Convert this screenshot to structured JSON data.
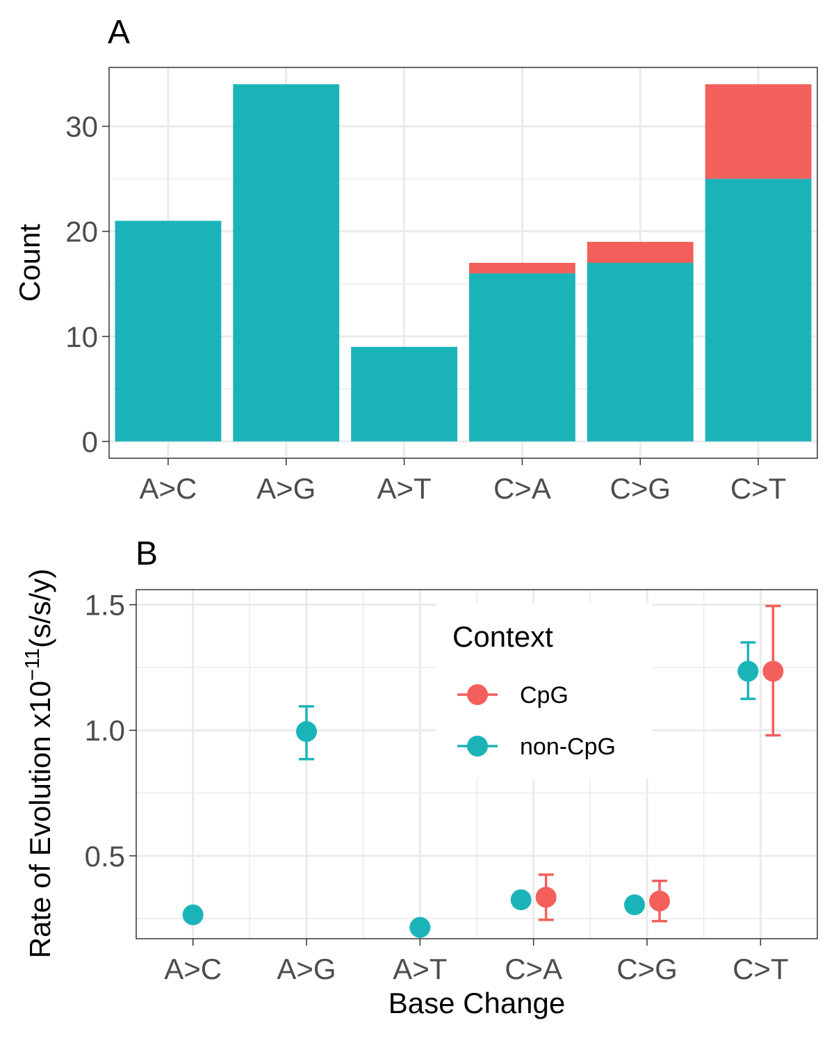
{
  "chart_data": [
    {
      "type": "bar",
      "stacked": true,
      "panel_tag": "A",
      "title": "",
      "xlabel": "",
      "ylabel": "Count",
      "ylim": [
        -1.6,
        35.6
      ],
      "yticks": [
        0,
        10,
        20,
        30
      ],
      "categories": [
        "A>C",
        "A>G",
        "A>T",
        "C>A",
        "C>G",
        "C>T"
      ],
      "series": [
        {
          "key": "non-CpG",
          "color": "#1ab4b8",
          "values": [
            21,
            34,
            9,
            16,
            17,
            25
          ]
        },
        {
          "key": "CpG",
          "color": "#f35f5b",
          "values": [
            0,
            0,
            0,
            1,
            2,
            9
          ]
        }
      ],
      "grid": true
    },
    {
      "type": "scatter",
      "panel_tag": "B",
      "title": "",
      "xlabel": "Base Change",
      "ylabel": {
        "prefix": "Rate of Evolution x10",
        "exponent": "−11",
        "suffix": "(s/s/y)"
      },
      "ylim": [
        0.17,
        1.56
      ],
      "yticks": [
        0.5,
        1.0,
        1.5
      ],
      "ytick_labels": [
        "0.5",
        "1.0",
        "1.5"
      ],
      "categories": [
        "A>C",
        "A>G",
        "A>T",
        "C>A",
        "C>G",
        "C>T"
      ],
      "error_bars": true,
      "series": [
        {
          "name": "CpG",
          "color": "#f35f5b",
          "points": [
            {
              "category": "C>A",
              "y": 0.335,
              "ymin": 0.245,
              "ymax": 0.425
            },
            {
              "category": "C>G",
              "y": 0.32,
              "ymin": 0.24,
              "ymax": 0.4
            },
            {
              "category": "C>T",
              "y": 1.235,
              "ymin": 0.98,
              "ymax": 1.495
            }
          ]
        },
        {
          "name": "non-CpG",
          "color": "#1ab4b8",
          "points": [
            {
              "category": "A>C",
              "y": 0.265,
              "ymin": 0.255,
              "ymax": 0.275
            },
            {
              "category": "A>G",
              "y": 0.995,
              "ymin": 0.885,
              "ymax": 1.095
            },
            {
              "category": "A>T",
              "y": 0.215,
              "ymin": 0.205,
              "ymax": 0.225
            },
            {
              "category": "C>A",
              "y": 0.325,
              "ymin": 0.31,
              "ymax": 0.34
            },
            {
              "category": "C>G",
              "y": 0.305,
              "ymin": 0.285,
              "ymax": 0.325
            },
            {
              "category": "C>T",
              "y": 1.235,
              "ymin": 1.125,
              "ymax": 1.35
            }
          ]
        }
      ],
      "legend": {
        "title": "Context",
        "position": "top-center",
        "items": [
          {
            "label": "CpG",
            "color": "#f35f5b"
          },
          {
            "label": "non-CpG",
            "color": "#1ab4b8"
          }
        ]
      },
      "grid": true
    }
  ]
}
